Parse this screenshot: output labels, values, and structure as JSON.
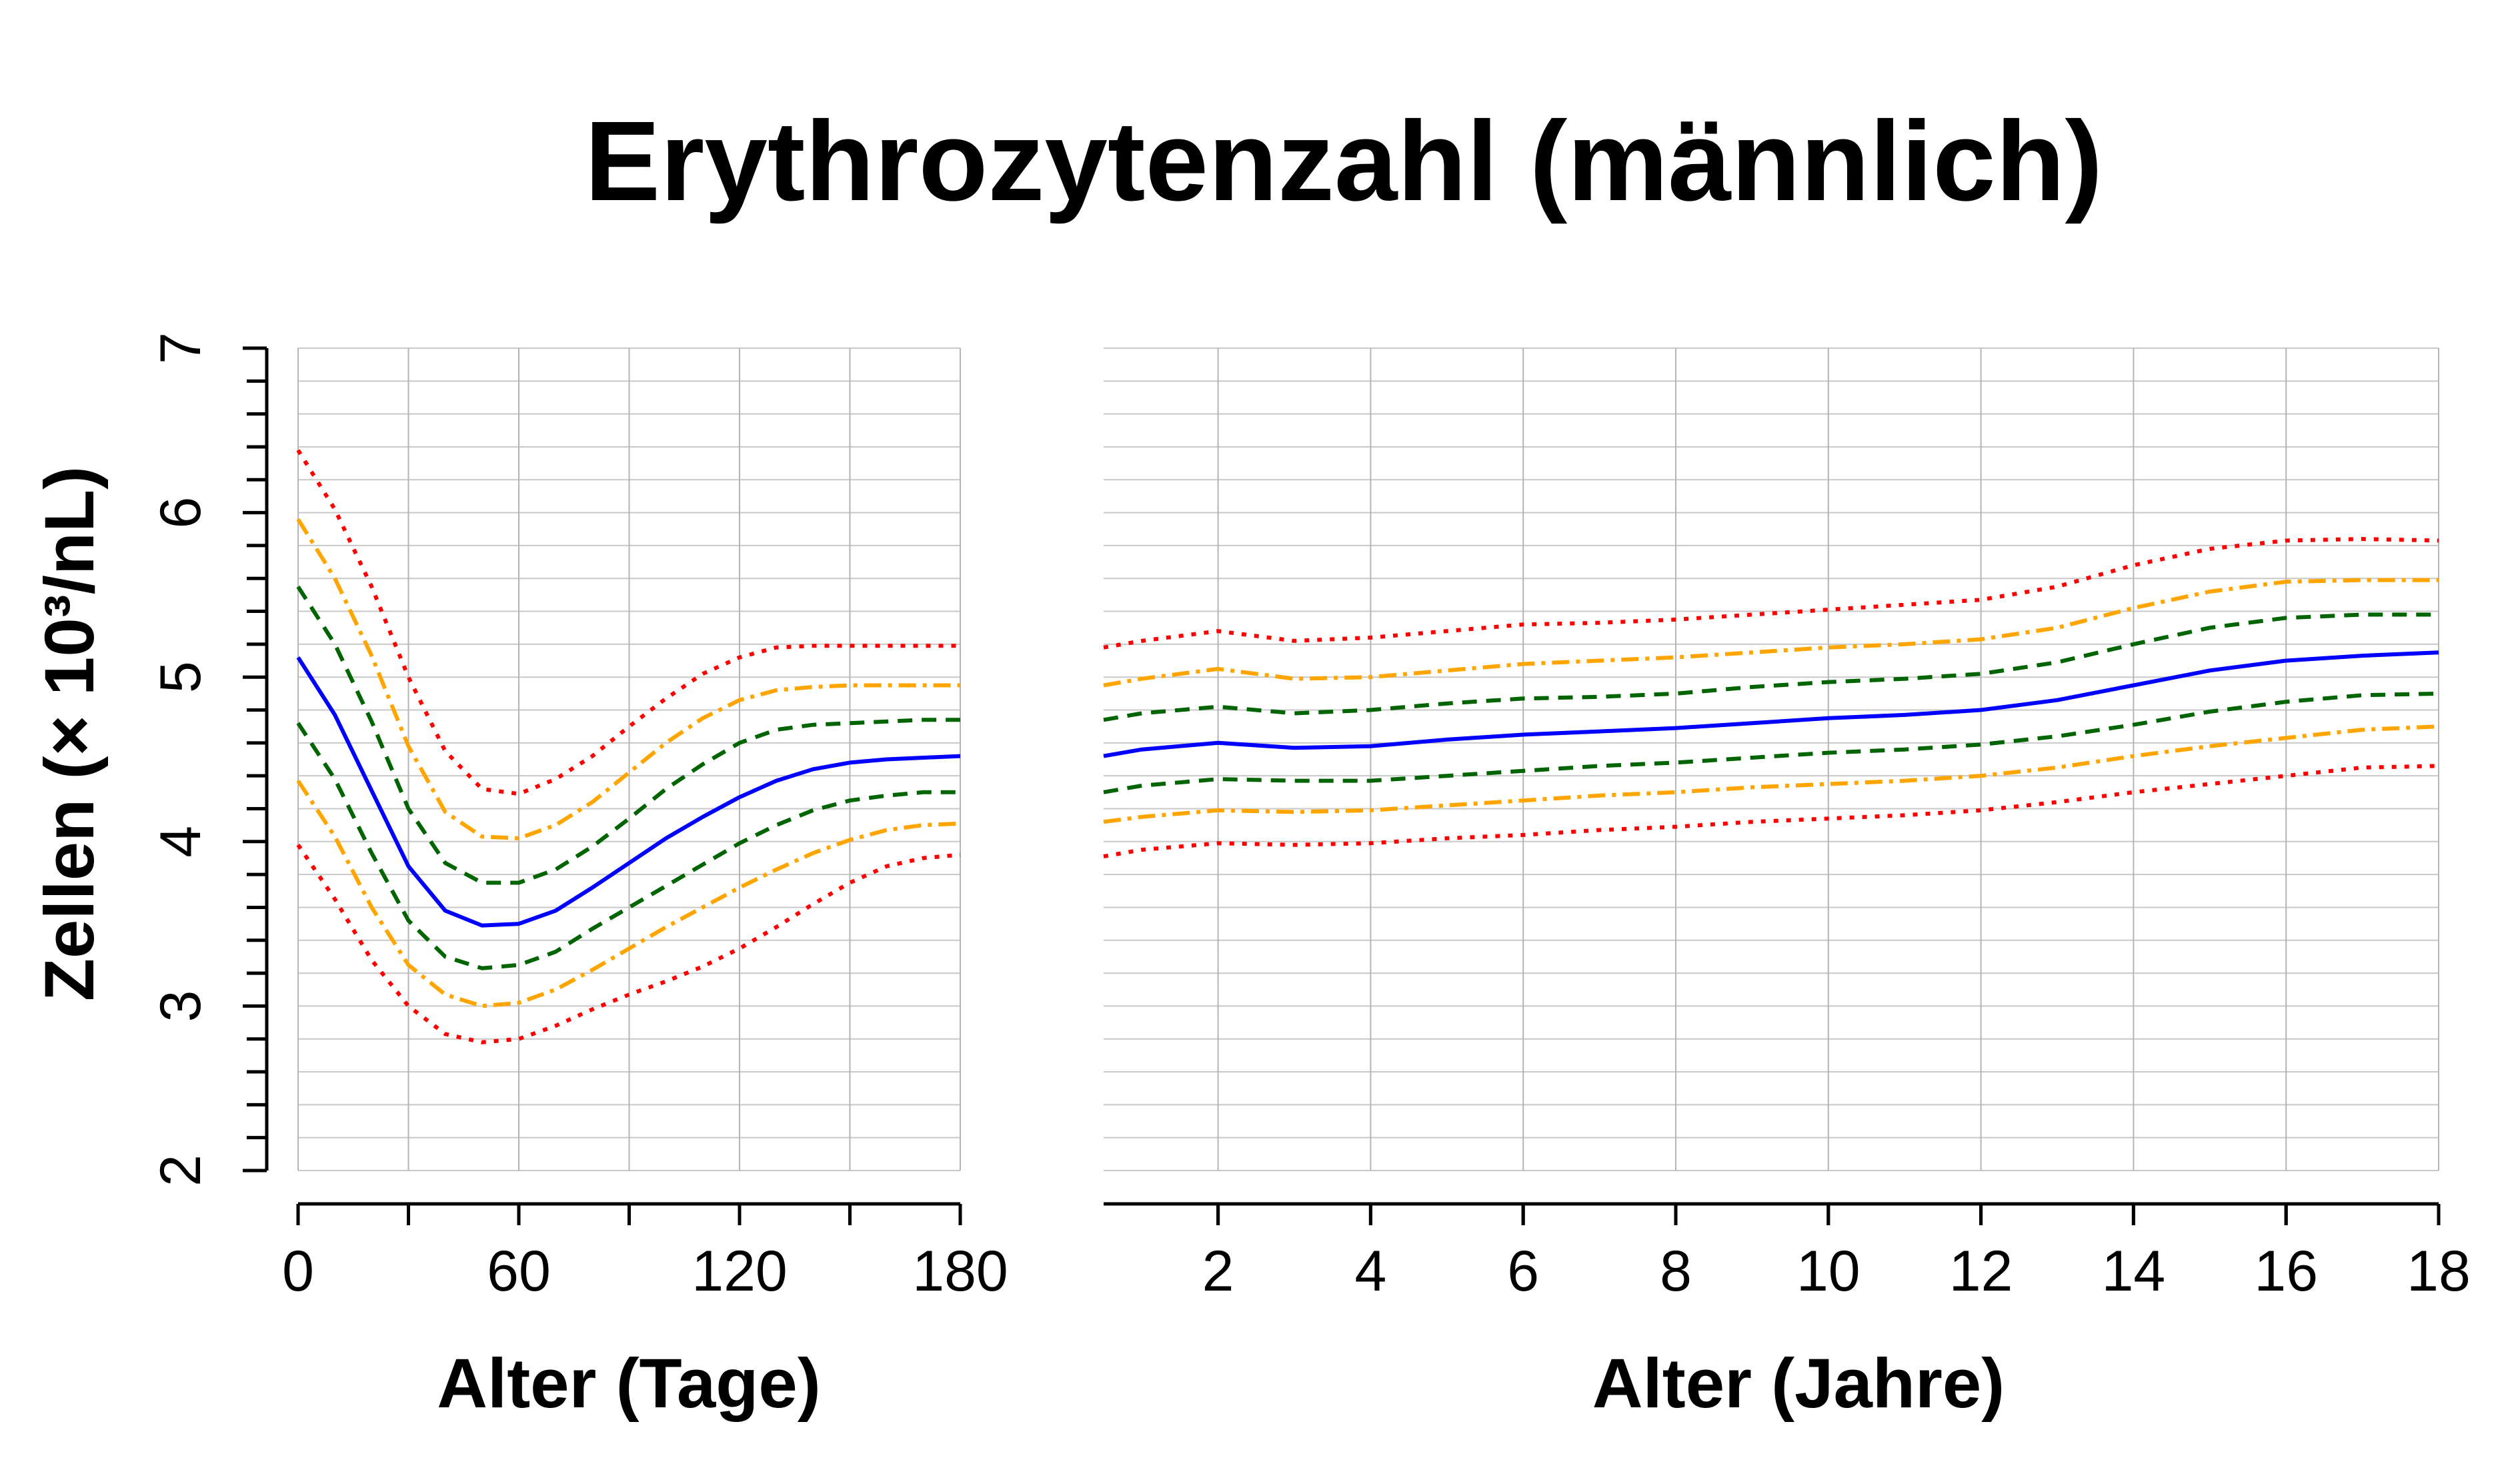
{
  "title": "Erythrozytenzahl (männlich)",
  "chart_data": {
    "type": "line",
    "title": "Erythrozytenzahl (männlich)",
    "ylabel": "Zellen (× 10³/nL)",
    "ylim": [
      2,
      7
    ],
    "yticks": [
      2,
      3,
      4,
      5,
      6,
      7
    ],
    "grid": true,
    "panels": [
      {
        "name": "days",
        "xlabel": "Alter (Tage)",
        "xlim": [
          0,
          180
        ],
        "xticks": [
          0,
          60,
          120,
          180
        ],
        "x": [
          0,
          10,
          20,
          30,
          40,
          50,
          60,
          70,
          80,
          90,
          100,
          110,
          120,
          130,
          140,
          150,
          160,
          170,
          180
        ],
        "series": [
          {
            "color": "#ff0000",
            "dash": "dotted",
            "values": [
              6.38,
              6.02,
              5.55,
              5.0,
              4.55,
              4.32,
              4.29,
              4.38,
              4.52,
              4.7,
              4.87,
              5.02,
              5.12,
              5.18,
              5.19,
              5.19,
              5.19,
              5.19,
              5.19
            ]
          },
          {
            "color": "#ffa500",
            "dash": "dashdot",
            "values": [
              5.96,
              5.6,
              5.13,
              4.58,
              4.18,
              4.03,
              4.02,
              4.1,
              4.24,
              4.42,
              4.6,
              4.75,
              4.86,
              4.92,
              4.94,
              4.95,
              4.95,
              4.95,
              4.95
            ]
          },
          {
            "color": "#006400",
            "dash": "dashed",
            "values": [
              5.55,
              5.2,
              4.73,
              4.2,
              3.87,
              3.75,
              3.75,
              3.83,
              3.97,
              4.14,
              4.32,
              4.47,
              4.6,
              4.68,
              4.71,
              4.72,
              4.73,
              4.74,
              4.74
            ]
          },
          {
            "color": "#0000ff",
            "dash": "solid",
            "values": [
              5.12,
              4.77,
              4.31,
              3.85,
              3.58,
              3.49,
              3.5,
              3.58,
              3.72,
              3.87,
              4.02,
              4.15,
              4.27,
              4.37,
              4.44,
              4.48,
              4.5,
              4.51,
              4.52
            ]
          },
          {
            "color": "#006400",
            "dash": "dashed",
            "values": [
              4.72,
              4.38,
              3.93,
              3.52,
              3.3,
              3.23,
              3.25,
              3.33,
              3.47,
              3.6,
              3.73,
              3.86,
              3.99,
              4.1,
              4.19,
              4.25,
              4.28,
              4.3,
              4.3
            ]
          },
          {
            "color": "#ffa500",
            "dash": "dashdot",
            "values": [
              4.37,
              4.03,
              3.6,
              3.25,
              3.07,
              3.0,
              3.02,
              3.1,
              3.22,
              3.35,
              3.48,
              3.6,
              3.72,
              3.83,
              3.93,
              4.01,
              4.07,
              4.1,
              4.11
            ]
          },
          {
            "color": "#ff0000",
            "dash": "dotted",
            "values": [
              3.98,
              3.65,
              3.28,
              3.0,
              2.83,
              2.78,
              2.8,
              2.88,
              2.98,
              3.07,
              3.15,
              3.24,
              3.35,
              3.48,
              3.62,
              3.75,
              3.85,
              3.9,
              3.92
            ]
          }
        ]
      },
      {
        "name": "years",
        "xlabel": "Alter (Jahre)",
        "xlim": [
          0.5,
          18
        ],
        "xticks": [
          2,
          4,
          6,
          8,
          10,
          12,
          14,
          16,
          18
        ],
        "x": [
          0.5,
          1,
          2,
          3,
          4,
          5,
          6,
          7,
          8,
          9,
          10,
          11,
          12,
          13,
          14,
          15,
          16,
          17,
          18
        ],
        "series": [
          {
            "color": "#ff0000",
            "dash": "dotted",
            "values": [
              5.18,
              5.22,
              5.28,
              5.22,
              5.24,
              5.28,
              5.32,
              5.33,
              5.35,
              5.38,
              5.41,
              5.44,
              5.47,
              5.55,
              5.68,
              5.78,
              5.83,
              5.84,
              5.83
            ]
          },
          {
            "color": "#ffa500",
            "dash": "dashdot",
            "values": [
              4.95,
              4.99,
              5.05,
              4.99,
              5.0,
              5.04,
              5.08,
              5.1,
              5.12,
              5.15,
              5.18,
              5.2,
              5.23,
              5.3,
              5.42,
              5.52,
              5.58,
              5.59,
              5.59
            ]
          },
          {
            "color": "#006400",
            "dash": "dashed",
            "values": [
              4.74,
              4.78,
              4.82,
              4.78,
              4.8,
              4.84,
              4.87,
              4.88,
              4.9,
              4.94,
              4.97,
              4.99,
              5.02,
              5.09,
              5.2,
              5.3,
              5.36,
              5.38,
              5.38
            ]
          },
          {
            "color": "#0000ff",
            "dash": "solid",
            "values": [
              4.52,
              4.56,
              4.6,
              4.57,
              4.58,
              4.62,
              4.65,
              4.67,
              4.69,
              4.72,
              4.75,
              4.77,
              4.8,
              4.86,
              4.95,
              5.04,
              5.1,
              5.13,
              5.15
            ]
          },
          {
            "color": "#006400",
            "dash": "dashed",
            "values": [
              4.3,
              4.34,
              4.38,
              4.37,
              4.37,
              4.4,
              4.43,
              4.46,
              4.48,
              4.51,
              4.54,
              4.56,
              4.59,
              4.64,
              4.71,
              4.79,
              4.85,
              4.89,
              4.9
            ]
          },
          {
            "color": "#ffa500",
            "dash": "dashdot",
            "values": [
              4.12,
              4.15,
              4.19,
              4.18,
              4.19,
              4.22,
              4.25,
              4.28,
              4.3,
              4.33,
              4.35,
              4.37,
              4.4,
              4.45,
              4.52,
              4.58,
              4.63,
              4.68,
              4.7
            ]
          },
          {
            "color": "#ff0000",
            "dash": "dotted",
            "values": [
              3.91,
              3.95,
              3.99,
              3.98,
              3.99,
              4.02,
              4.04,
              4.07,
              4.09,
              4.12,
              4.14,
              4.16,
              4.19,
              4.24,
              4.3,
              4.35,
              4.4,
              4.45,
              4.46
            ]
          }
        ]
      }
    ]
  }
}
